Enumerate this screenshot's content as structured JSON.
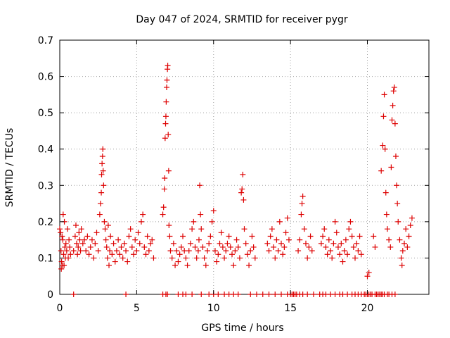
{
  "chart_data": {
    "type": "scatter",
    "title": "Day 047 of 2024, SRMTID for receiver pygr",
    "xlabel": "GPS time / hours",
    "ylabel": "SRMTID / TECUs",
    "xlim": [
      0,
      24
    ],
    "ylim": [
      0,
      0.7
    ],
    "xticks": [
      0,
      5,
      10,
      15,
      20
    ],
    "xtick_labels": [
      "0",
      "5",
      "10",
      "15",
      "20"
    ],
    "yticks": [
      0,
      0.1,
      0.2,
      0.3,
      0.4,
      0.5,
      0.6,
      0.7
    ],
    "ytick_labels": [
      "0",
      "0.1",
      "0.2",
      "0.3",
      "0.4",
      "0.5",
      "0.6",
      "0.7"
    ],
    "grid": true,
    "marker": "+",
    "series_color": "#dd0000",
    "series": [
      {
        "name": "SRMTID",
        "points": [
          [
            0.0,
            0.18
          ],
          [
            0.05,
            0.17
          ],
          [
            0.08,
            0.12
          ],
          [
            0.1,
            0.07
          ],
          [
            0.12,
            0.09
          ],
          [
            0.15,
            0.16
          ],
          [
            0.18,
            0.08
          ],
          [
            0.2,
            0.15
          ],
          [
            0.22,
            0.22
          ],
          [
            0.25,
            0.11
          ],
          [
            0.28,
            0.08
          ],
          [
            0.3,
            0.2
          ],
          [
            0.33,
            0.13
          ],
          [
            0.36,
            0.1
          ],
          [
            0.4,
            0.14
          ],
          [
            0.45,
            0.12
          ],
          [
            0.5,
            0.18
          ],
          [
            0.55,
            0.1
          ],
          [
            0.6,
            0.15
          ],
          [
            0.65,
            0.13
          ],
          [
            0.7,
            0.11
          ],
          [
            0.9,
            0.12
          ],
          [
            1.0,
            0.16
          ],
          [
            1.05,
            0.19
          ],
          [
            1.1,
            0.14
          ],
          [
            1.15,
            0.11
          ],
          [
            1.2,
            0.13
          ],
          [
            1.25,
            0.17
          ],
          [
            1.3,
            0.15
          ],
          [
            1.35,
            0.12
          ],
          [
            1.4,
            0.18
          ],
          [
            1.5,
            0.14
          ],
          [
            1.6,
            0.15
          ],
          [
            1.7,
            0.12
          ],
          [
            1.8,
            0.16
          ],
          [
            1.9,
            0.11
          ],
          [
            2.0,
            0.13
          ],
          [
            2.1,
            0.15
          ],
          [
            2.2,
            0.1
          ],
          [
            2.3,
            0.14
          ],
          [
            2.4,
            0.17
          ],
          [
            2.5,
            0.12
          ],
          [
            2.6,
            0.22
          ],
          [
            2.65,
            0.25
          ],
          [
            2.7,
            0.28
          ],
          [
            2.72,
            0.33
          ],
          [
            2.75,
            0.36
          ],
          [
            2.78,
            0.38
          ],
          [
            2.8,
            0.4
          ],
          [
            2.82,
            0.34
          ],
          [
            2.85,
            0.3
          ],
          [
            2.9,
            0.2
          ],
          [
            2.95,
            0.18
          ],
          [
            3.0,
            0.15
          ],
          [
            3.05,
            0.13
          ],
          [
            3.1,
            0.1
          ],
          [
            3.15,
            0.19
          ],
          [
            3.2,
            0.08
          ],
          [
            3.25,
            0.12
          ],
          [
            3.3,
            0.16
          ],
          [
            3.4,
            0.11
          ],
          [
            3.5,
            0.14
          ],
          [
            3.6,
            0.09
          ],
          [
            3.7,
            0.12
          ],
          [
            3.8,
            0.15
          ],
          [
            3.9,
            0.11
          ],
          [
            4.0,
            0.13
          ],
          [
            4.1,
            0.1
          ],
          [
            4.2,
            0.14
          ],
          [
            4.3,
            0.12
          ],
          [
            4.4,
            0.09
          ],
          [
            4.5,
            0.16
          ],
          [
            4.6,
            0.18
          ],
          [
            4.7,
            0.13
          ],
          [
            4.8,
            0.11
          ],
          [
            4.9,
            0.15
          ],
          [
            5.0,
            0.12
          ],
          [
            5.1,
            0.17
          ],
          [
            5.2,
            0.14
          ],
          [
            5.3,
            0.2
          ],
          [
            5.4,
            0.22
          ],
          [
            5.5,
            0.13
          ],
          [
            5.6,
            0.11
          ],
          [
            5.7,
            0.16
          ],
          [
            5.8,
            0.12
          ],
          [
            5.9,
            0.14
          ],
          [
            6.0,
            0.15
          ],
          [
            6.1,
            0.1
          ],
          [
            6.7,
            0.22
          ],
          [
            6.75,
            0.24
          ],
          [
            6.8,
            0.29
          ],
          [
            6.82,
            0.32
          ],
          [
            6.85,
            0.43
          ],
          [
            6.88,
            0.47
          ],
          [
            6.9,
            0.49
          ],
          [
            6.92,
            0.53
          ],
          [
            6.95,
            0.57
          ],
          [
            6.97,
            0.59
          ],
          [
            7.0,
            0.62
          ],
          [
            7.02,
            0.63
          ],
          [
            7.05,
            0.44
          ],
          [
            7.08,
            0.34
          ],
          [
            7.1,
            0.19
          ],
          [
            7.15,
            0.16
          ],
          [
            7.2,
            0.12
          ],
          [
            7.3,
            0.1
          ],
          [
            7.4,
            0.14
          ],
          [
            7.5,
            0.08
          ],
          [
            7.6,
            0.12
          ],
          [
            7.7,
            0.09
          ],
          [
            7.8,
            0.11
          ],
          [
            7.9,
            0.13
          ],
          [
            8.0,
            0.16
          ],
          [
            8.1,
            0.12
          ],
          [
            8.2,
            0.1
          ],
          [
            8.3,
            0.08
          ],
          [
            8.4,
            0.12
          ],
          [
            8.5,
            0.14
          ],
          [
            8.6,
            0.18
          ],
          [
            8.7,
            0.2
          ],
          [
            8.8,
            0.13
          ],
          [
            8.9,
            0.1
          ],
          [
            9.0,
            0.12
          ],
          [
            9.05,
            0.15
          ],
          [
            9.1,
            0.3
          ],
          [
            9.15,
            0.22
          ],
          [
            9.2,
            0.18
          ],
          [
            9.3,
            0.13
          ],
          [
            9.4,
            0.1
          ],
          [
            9.5,
            0.08
          ],
          [
            9.6,
            0.12
          ],
          [
            9.7,
            0.14
          ],
          [
            9.8,
            0.16
          ],
          [
            9.9,
            0.2
          ],
          [
            10.0,
            0.23
          ],
          [
            10.1,
            0.12
          ],
          [
            10.2,
            0.09
          ],
          [
            10.3,
            0.11
          ],
          [
            10.4,
            0.14
          ],
          [
            10.5,
            0.17
          ],
          [
            10.6,
            0.13
          ],
          [
            10.7,
            0.1
          ],
          [
            10.8,
            0.12
          ],
          [
            10.9,
            0.14
          ],
          [
            11.0,
            0.16
          ],
          [
            11.1,
            0.13
          ],
          [
            11.2,
            0.11
          ],
          [
            11.3,
            0.08
          ],
          [
            11.4,
            0.12
          ],
          [
            11.5,
            0.15
          ],
          [
            11.6,
            0.13
          ],
          [
            11.7,
            0.1
          ],
          [
            11.8,
            0.28
          ],
          [
            11.85,
            0.29
          ],
          [
            11.9,
            0.33
          ],
          [
            11.95,
            0.26
          ],
          [
            12.0,
            0.18
          ],
          [
            12.1,
            0.14
          ],
          [
            12.2,
            0.11
          ],
          [
            12.3,
            0.08
          ],
          [
            12.4,
            0.12
          ],
          [
            12.5,
            0.16
          ],
          [
            12.6,
            0.13
          ],
          [
            12.7,
            0.1
          ],
          [
            13.5,
            0.14
          ],
          [
            13.6,
            0.12
          ],
          [
            13.7,
            0.16
          ],
          [
            13.8,
            0.18
          ],
          [
            13.9,
            0.13
          ],
          [
            14.0,
            0.1
          ],
          [
            14.1,
            0.15
          ],
          [
            14.2,
            0.12
          ],
          [
            14.3,
            0.2
          ],
          [
            14.4,
            0.14
          ],
          [
            14.5,
            0.11
          ],
          [
            14.6,
            0.13
          ],
          [
            14.7,
            0.17
          ],
          [
            14.8,
            0.21
          ],
          [
            14.9,
            0.15
          ],
          [
            15.5,
            0.12
          ],
          [
            15.6,
            0.15
          ],
          [
            15.7,
            0.22
          ],
          [
            15.75,
            0.25
          ],
          [
            15.8,
            0.27
          ],
          [
            15.9,
            0.18
          ],
          [
            16.0,
            0.14
          ],
          [
            16.1,
            0.1
          ],
          [
            16.2,
            0.13
          ],
          [
            16.3,
            0.16
          ],
          [
            16.4,
            0.12
          ],
          [
            17.0,
            0.14
          ],
          [
            17.1,
            0.16
          ],
          [
            17.2,
            0.18
          ],
          [
            17.3,
            0.13
          ],
          [
            17.4,
            0.11
          ],
          [
            17.5,
            0.15
          ],
          [
            17.6,
            0.12
          ],
          [
            17.7,
            0.1
          ],
          [
            17.8,
            0.14
          ],
          [
            17.9,
            0.2
          ],
          [
            18.0,
            0.17
          ],
          [
            18.1,
            0.13
          ],
          [
            18.2,
            0.11
          ],
          [
            18.3,
            0.14
          ],
          [
            18.4,
            0.09
          ],
          [
            18.5,
            0.12
          ],
          [
            18.6,
            0.15
          ],
          [
            18.7,
            0.11
          ],
          [
            18.8,
            0.18
          ],
          [
            18.9,
            0.2
          ],
          [
            19.0,
            0.16
          ],
          [
            19.1,
            0.13
          ],
          [
            19.2,
            0.1
          ],
          [
            19.3,
            0.14
          ],
          [
            19.4,
            0.12
          ],
          [
            19.5,
            0.16
          ],
          [
            19.6,
            0.11
          ],
          [
            20.0,
            0.05
          ],
          [
            20.1,
            0.06
          ],
          [
            20.4,
            0.16
          ],
          [
            20.5,
            0.13
          ],
          [
            20.9,
            0.34
          ],
          [
            21.0,
            0.41
          ],
          [
            21.05,
            0.49
          ],
          [
            21.1,
            0.55
          ],
          [
            21.15,
            0.4
          ],
          [
            21.2,
            0.28
          ],
          [
            21.25,
            0.22
          ],
          [
            21.3,
            0.18
          ],
          [
            21.4,
            0.15
          ],
          [
            21.5,
            0.13
          ],
          [
            21.55,
            0.35
          ],
          [
            21.6,
            0.48
          ],
          [
            21.65,
            0.52
          ],
          [
            21.7,
            0.56
          ],
          [
            21.75,
            0.57
          ],
          [
            21.8,
            0.47
          ],
          [
            21.85,
            0.38
          ],
          [
            21.9,
            0.3
          ],
          [
            21.95,
            0.25
          ],
          [
            22.0,
            0.2
          ],
          [
            22.1,
            0.15
          ],
          [
            22.2,
            0.1
          ],
          [
            22.25,
            0.08
          ],
          [
            22.3,
            0.12
          ],
          [
            22.4,
            0.14
          ],
          [
            22.5,
            0.18
          ],
          [
            22.6,
            0.13
          ],
          [
            22.7,
            0.16
          ],
          [
            22.8,
            0.19
          ],
          [
            22.9,
            0.21
          ]
        ]
      }
    ],
    "zero_markers_x": [
      0.9,
      4.3,
      6.7,
      6.9,
      7.0,
      7.7,
      8.0,
      8.2,
      8.6,
      9.2,
      9.7,
      10.0,
      10.3,
      10.7,
      11.0,
      11.3,
      11.6,
      12.4,
      12.8,
      13.2,
      13.6,
      14.0,
      14.4,
      14.8,
      15.0,
      15.1,
      15.2,
      15.3,
      15.4,
      15.6,
      15.8,
      16.1,
      16.5,
      16.9,
      17.1,
      17.3,
      17.6,
      17.9,
      18.2,
      18.4,
      18.7,
      19.0,
      19.2,
      19.4,
      19.6,
      19.8,
      19.9,
      20.0,
      20.1,
      20.2,
      20.3,
      20.5,
      20.6,
      20.7,
      20.8,
      20.9,
      21.0,
      21.1,
      21.3,
      21.4,
      21.6,
      21.8
    ]
  }
}
